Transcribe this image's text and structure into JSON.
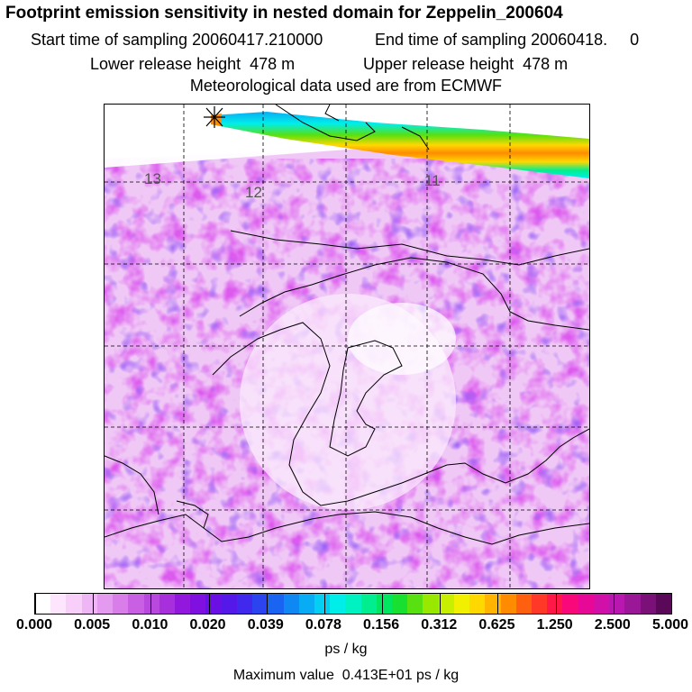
{
  "header": {
    "title": "Footprint emission sensitivity in nested domain for Zeppelin_200604",
    "start_label": "Start time of sampling 20060417.210000",
    "end_label": "End time of sampling 20060418.     0",
    "lower_label": "Lower release height  478 m",
    "upper_label": "Upper release height  478 m",
    "met_label": "Meteorological data used are from ECMWF"
  },
  "map": {
    "grid_labels": [
      "13",
      "12",
      "11"
    ],
    "release_marker": "release-site-star"
  },
  "colorbar": {
    "ticks": [
      "0.000",
      "0.005",
      "0.010",
      "0.020",
      "0.039",
      "0.078",
      "0.156",
      "0.312",
      "0.625",
      "1.250",
      "2.500",
      "5.000"
    ],
    "unit": "ps / kg",
    "colors": [
      "#ffffff",
      "#fde6fd",
      "#f7cff9",
      "#eeb6f5",
      "#e49aef",
      "#d97ee9",
      "#c960e4",
      "#b948df",
      "#a730dc",
      "#9318de",
      "#7f10e0",
      "#6a10e4",
      "#5418e8",
      "#4028ec",
      "#2b44f0",
      "#1a64f2",
      "#0f88f4",
      "#08acf4",
      "#04cff2",
      "#00eeea",
      "#00f2c0",
      "#00ee90",
      "#00e660",
      "#18e030",
      "#58e010",
      "#98e800",
      "#c8ee00",
      "#f0f000",
      "#ffd800",
      "#ffb400",
      "#ff8c00",
      "#ff6010",
      "#ff3828",
      "#ff1848",
      "#f80878",
      "#e80898",
      "#d010a8",
      "#b818b0",
      "#9a1898",
      "#7a1078",
      "#5a0858"
    ]
  },
  "footer": {
    "max_label": "Maximum value  0.413E+01 ps / kg"
  }
}
